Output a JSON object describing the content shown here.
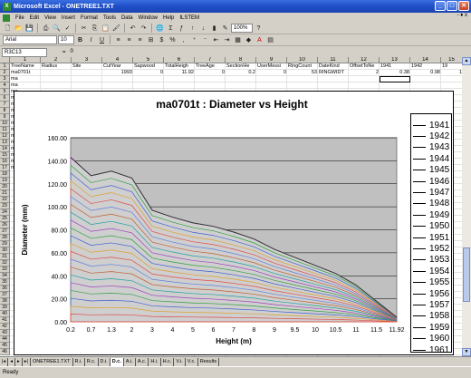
{
  "window": {
    "title": "Microsoft Excel - ONETREE1.TXT"
  },
  "menu": {
    "items": [
      "File",
      "Edit",
      "View",
      "Insert",
      "Format",
      "Tools",
      "Data",
      "Window",
      "Help",
      "ILSTEM"
    ],
    "doc_controls": "- ♦ x"
  },
  "toolbar": {
    "font": "Arial",
    "size": "10",
    "zoom": "100%",
    "bold": "B",
    "italic": "I",
    "underline": "U"
  },
  "formula_bar": {
    "name_box": "R3C13",
    "fx": "=",
    "value": "0"
  },
  "grid": {
    "col_headers": [
      "1",
      "2",
      "3",
      "4",
      "5",
      "6",
      "7",
      "8",
      "9",
      "10",
      "11",
      "12",
      "13",
      "14",
      "15"
    ],
    "row1": [
      "TreeName",
      "Radius",
      "Site",
      "CutYear",
      "Sapwood",
      "TotalHeigh",
      "TreeAge",
      "SectionHe",
      "UserMessi",
      "RingCount",
      "DateKind",
      "OffsetToNe",
      "1941",
      "1942",
      "19"
    ],
    "row2": [
      "ma0701t",
      "",
      "",
      "1993",
      "0",
      "11.92",
      "0",
      "0.2",
      "0",
      "53",
      "RINGWIDT",
      "2",
      "0.38",
      "0.98",
      "1"
    ],
    "row_label": "ma"
  },
  "chart": {
    "title": "ma0701t : Diameter vs Height",
    "colors": [
      "#e24a4a",
      "#e0a030",
      "#4060d0",
      "#30a040",
      "#a040c0",
      "#20a0a0",
      "#c06030",
      "#6080e0"
    ]
  },
  "chart_data": {
    "type": "area",
    "title": "ma0701t : Diameter vs Height",
    "xlabel": "Height (m)",
    "ylabel": "Diameter (mm)",
    "categories": [
      "0.2",
      "0.7",
      "1.3",
      "2",
      "3",
      "4",
      "5",
      "6",
      "7",
      "8",
      "9",
      "9.5",
      "10",
      "10.5",
      "11",
      "11.5",
      "11.92"
    ],
    "ylim": [
      0,
      160
    ],
    "yticks": [
      "0.00",
      "20.00",
      "40.00",
      "60.00",
      "80.00",
      "100.00",
      "120.00",
      "140.00",
      "160.00"
    ],
    "outer_values": [
      143,
      127,
      131,
      125,
      97,
      91,
      86,
      83,
      78,
      72,
      63,
      56,
      49,
      42,
      32,
      18,
      4
    ],
    "series_names": [
      "1941",
      "1942",
      "1943",
      "1944",
      "1945",
      "1946",
      "1947",
      "1948",
      "1949",
      "1950",
      "1951",
      "1952",
      "1953",
      "1954",
      "1955",
      "1956",
      "1957",
      "1958",
      "1959",
      "1960",
      "1961"
    ],
    "legend": "right",
    "grid": true
  },
  "sheets": {
    "tabs": [
      "ONETREE1.TXT",
      "R.i.",
      "R.c.",
      "D.i.",
      "D.c.",
      "A.i.",
      "A.c.",
      "H.i.",
      "H.c.",
      "V.i.",
      "V.c.",
      "Results"
    ],
    "active": "D.c."
  },
  "status": "Ready"
}
